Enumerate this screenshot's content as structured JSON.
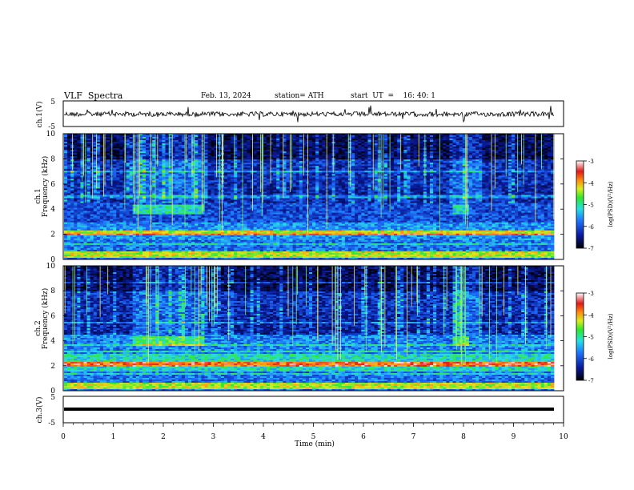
{
  "header": {
    "title": "VLF  Spectra",
    "date": "Feb. 13, 2024",
    "station": "station= ATH",
    "start": "start  UT  =    16: 40: 1"
  },
  "colors": {
    "background": "#ffffff",
    "axis": "#000000",
    "spectrogram_low": "#000020",
    "spectrogram_mid": "#1f4fd8",
    "spectrogram_high": "#e6241c"
  },
  "chart_data": [
    {
      "type": "line",
      "name": "ch1-waveform",
      "ylabel": "ch.1(V)",
      "ytick_labels": [
        "5",
        "-5"
      ],
      "ylim": [
        -5,
        5
      ],
      "xlim": [
        0,
        10
      ],
      "grid": false
    },
    {
      "type": "heatmap",
      "name": "ch1-spectrogram",
      "ylabel_channel": "ch.1",
      "ylabel": "Frequency  (kHz)",
      "ylim": [
        0,
        10
      ],
      "yticks": [
        0,
        2,
        4,
        6,
        8,
        10
      ],
      "ytick_labels": [
        "0",
        "2",
        "4",
        "6",
        "8",
        "10"
      ],
      "xlim": [
        0,
        9.8
      ],
      "colorbar": {
        "label": "log(PSD)(V²/Hz)",
        "range": [
          -7,
          -3
        ],
        "tick_labels": [
          "-3",
          "-4",
          "-5",
          "-6",
          "-7"
        ]
      }
    },
    {
      "type": "heatmap",
      "name": "ch2-spectrogram",
      "ylabel_channel": "ch.2",
      "ylabel": "Frequency  (kHz)",
      "ylim": [
        0,
        10
      ],
      "yticks": [
        0,
        2,
        4,
        6,
        8,
        10
      ],
      "ytick_labels": [
        "0",
        "2",
        "4",
        "6",
        "8",
        "10"
      ],
      "xlim": [
        0,
        9.8
      ],
      "colorbar": {
        "label": "log(PSD)(V²/Hz)",
        "range": [
          -7,
          -3
        ],
        "tick_labels": [
          "-3",
          "-4",
          "-5",
          "-6",
          "-7"
        ]
      }
    },
    {
      "type": "line",
      "name": "ch3-waveform",
      "ylabel": "ch.3(V)",
      "ytick_labels": [
        "5",
        "-5"
      ],
      "ylim": [
        -5,
        5
      ],
      "xlim": [
        0,
        10
      ],
      "grid": false,
      "xlabel": "Time  (min)",
      "xticks": [
        0,
        1,
        2,
        3,
        4,
        5,
        6,
        7,
        8,
        9,
        10
      ],
      "xtick_labels": [
        "0",
        "1",
        "2",
        "3",
        "4",
        "5",
        "6",
        "7",
        "8",
        "9",
        "10"
      ]
    }
  ]
}
